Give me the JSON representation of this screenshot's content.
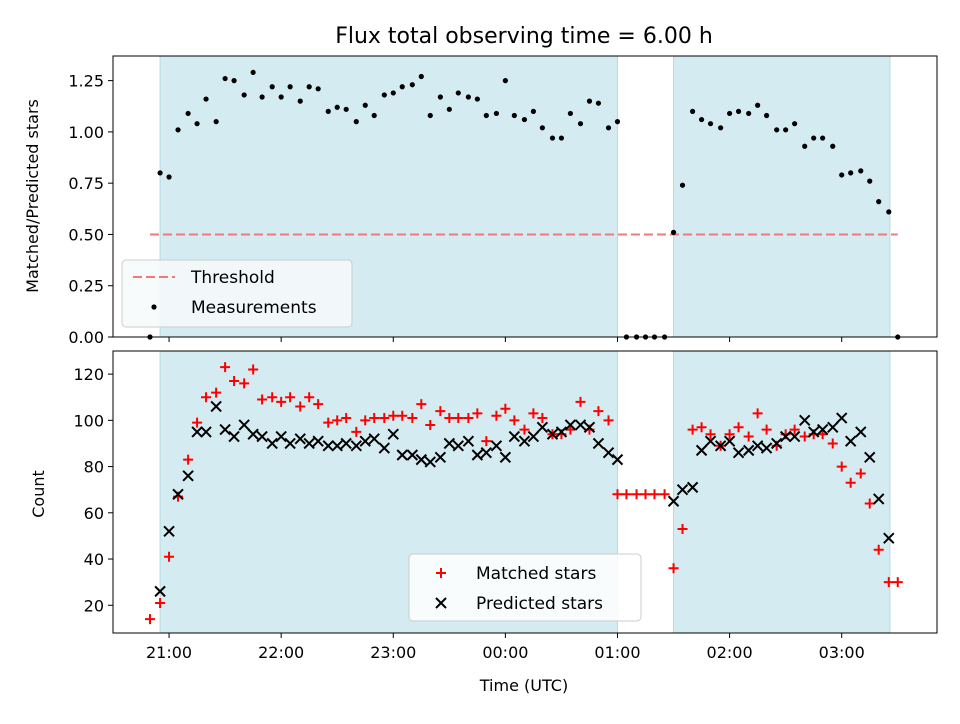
{
  "figure_title": "Flux total observing time = 6.00 h",
  "xlabel": "Time (UTC)",
  "x_ticks": [
    "21:00",
    "22:00",
    "23:00",
    "00:00",
    "01:00",
    "02:00",
    "03:00"
  ],
  "chart_data": [
    {
      "type": "scatter",
      "title": "Flux total observing time = 6.00 h",
      "ylabel": "Matched/Predicted stars",
      "x_unit": "hours after 21:00 UTC",
      "xlim": [
        -0.5,
        6.85
      ],
      "ylim": [
        0,
        1.37
      ],
      "y_ticks": [
        "0.00",
        "0.25",
        "0.50",
        "0.75",
        "1.00",
        "1.25"
      ],
      "shaded_intervals": [
        [
          -0.08,
          4.0
        ],
        [
          4.5,
          6.43
        ]
      ],
      "shade_color": "#d3ebf1",
      "legend_position": "lower-left",
      "threshold": {
        "name": "Threshold",
        "value": 0.5,
        "x_range": [
          -0.17,
          6.5
        ],
        "color": "#f07a7a"
      },
      "series": [
        {
          "name": "Measurements",
          "color": "#000000",
          "x": [
            -0.17,
            -0.08,
            0,
            0.08,
            0.17,
            0.25,
            0.33,
            0.42,
            0.5,
            0.58,
            0.67,
            0.75,
            0.83,
            0.92,
            1.0,
            1.08,
            1.17,
            1.25,
            1.33,
            1.42,
            1.5,
            1.58,
            1.67,
            1.75,
            1.83,
            1.92,
            2.0,
            2.08,
            2.17,
            2.25,
            2.33,
            2.42,
            2.5,
            2.58,
            2.67,
            2.75,
            2.83,
            2.92,
            3.0,
            3.08,
            3.17,
            3.25,
            3.33,
            3.42,
            3.5,
            3.58,
            3.67,
            3.75,
            3.83,
            3.92,
            4.0,
            4.08,
            4.17,
            4.25,
            4.33,
            4.42,
            4.5,
            4.58,
            4.67,
            4.75,
            4.83,
            4.92,
            5.0,
            5.08,
            5.17,
            5.25,
            5.33,
            5.42,
            5.5,
            5.58,
            5.67,
            5.75,
            5.83,
            5.92,
            6.0,
            6.08,
            6.17,
            6.25,
            6.33,
            6.42,
            6.5
          ],
          "y": [
            0,
            0.8,
            0.78,
            1.01,
            1.09,
            1.04,
            1.16,
            1.05,
            1.26,
            1.25,
            1.18,
            1.29,
            1.17,
            1.22,
            1.17,
            1.22,
            1.15,
            1.22,
            1.21,
            1.1,
            1.12,
            1.11,
            1.05,
            1.13,
            1.08,
            1.18,
            1.19,
            1.22,
            1.23,
            1.27,
            1.08,
            1.17,
            1.11,
            1.19,
            1.17,
            1.16,
            1.08,
            1.09,
            1.25,
            1.08,
            1.06,
            1.1,
            1.02,
            0.97,
            0.97,
            1.09,
            1.04,
            1.15,
            1.14,
            1.02,
            1.05,
            0,
            0,
            0,
            0,
            0,
            0.51,
            0.74,
            1.1,
            1.06,
            1.04,
            1.02,
            1.09,
            1.1,
            1.09,
            1.13,
            1.08,
            1.01,
            1.01,
            1.04,
            0.93,
            0.97,
            0.97,
            0.93,
            0.79,
            0.8,
            0.81,
            0.76,
            0.66,
            0.61,
            0
          ]
        }
      ]
    },
    {
      "type": "scatter",
      "ylabel": "Count",
      "x_unit": "hours after 21:00 UTC",
      "xlim": [
        -0.5,
        6.85
      ],
      "ylim": [
        8,
        130
      ],
      "y_ticks": [
        "20",
        "40",
        "60",
        "80",
        "100",
        "120"
      ],
      "shaded_intervals": [
        [
          -0.08,
          4.0
        ],
        [
          4.5,
          6.43
        ]
      ],
      "shade_color": "#d3ebf1",
      "legend_position": "lower-center",
      "series": [
        {
          "name": "Matched stars",
          "marker": "plus",
          "color": "#ff0000",
          "x": [
            -0.17,
            -0.08,
            0,
            0.08,
            0.17,
            0.25,
            0.33,
            0.42,
            0.5,
            0.58,
            0.67,
            0.75,
            0.83,
            0.92,
            1.0,
            1.08,
            1.17,
            1.25,
            1.33,
            1.42,
            1.5,
            1.58,
            1.67,
            1.75,
            1.83,
            1.92,
            2.0,
            2.08,
            2.17,
            2.25,
            2.33,
            2.42,
            2.5,
            2.58,
            2.67,
            2.75,
            2.83,
            2.92,
            3.0,
            3.08,
            3.17,
            3.25,
            3.33,
            3.42,
            3.5,
            3.58,
            3.67,
            3.75,
            3.83,
            3.92,
            4.0,
            4.08,
            4.17,
            4.25,
            4.33,
            4.42,
            4.5,
            4.58,
            4.67,
            4.75,
            4.83,
            4.92,
            5.0,
            5.08,
            5.17,
            5.25,
            5.33,
            5.42,
            5.5,
            5.58,
            5.67,
            5.75,
            5.83,
            5.92,
            6.0,
            6.08,
            6.17,
            6.25,
            6.33,
            6.42,
            6.5
          ],
          "y": [
            14,
            21,
            41,
            67,
            83,
            99,
            110,
            112,
            123,
            117,
            116,
            122,
            109,
            110,
            108,
            110,
            106,
            110,
            107,
            99,
            100,
            101,
            95,
            100,
            101,
            101,
            102,
            102,
            101,
            107,
            98,
            104,
            101,
            101,
            101,
            103,
            91,
            102,
            105,
            100,
            96,
            103,
            101,
            94,
            94,
            96,
            108,
            96,
            104,
            100,
            68,
            68,
            68,
            68,
            68,
            68,
            36,
            53,
            96,
            97,
            94,
            89,
            94,
            97,
            93,
            103,
            96,
            89,
            94,
            96,
            93,
            94,
            94,
            90,
            80,
            73,
            77,
            64,
            44,
            30,
            30
          ]
        },
        {
          "name": "Predicted stars",
          "marker": "x",
          "color": "#000000",
          "x": [
            -0.08,
            0,
            0.08,
            0.17,
            0.25,
            0.33,
            0.42,
            0.5,
            0.58,
            0.67,
            0.75,
            0.83,
            0.92,
            1.0,
            1.08,
            1.17,
            1.25,
            1.33,
            1.42,
            1.5,
            1.58,
            1.67,
            1.75,
            1.83,
            1.92,
            2.0,
            2.08,
            2.17,
            2.25,
            2.33,
            2.42,
            2.5,
            2.58,
            2.67,
            2.75,
            2.83,
            2.92,
            3.0,
            3.08,
            3.17,
            3.25,
            3.33,
            3.42,
            3.5,
            3.58,
            3.67,
            3.75,
            3.83,
            3.92,
            4.0,
            4.5,
            4.58,
            4.67,
            4.75,
            4.83,
            4.92,
            5.0,
            5.08,
            5.17,
            5.25,
            5.33,
            5.42,
            5.5,
            5.58,
            5.67,
            5.75,
            5.83,
            5.92,
            6.0,
            6.08,
            6.17,
            6.25,
            6.33,
            6.42
          ],
          "y": [
            26,
            52,
            68,
            76,
            95,
            95,
            106,
            96,
            93,
            98,
            94,
            93,
            90,
            93,
            90,
            92,
            90,
            91,
            89,
            89,
            90,
            89,
            91,
            92,
            88,
            94,
            85,
            85,
            83,
            82,
            84,
            90,
            89,
            91,
            85,
            86,
            89,
            84,
            93,
            91,
            93,
            97,
            94,
            95,
            98,
            98,
            97,
            90,
            86,
            83,
            65,
            70,
            71,
            87,
            91,
            89,
            91,
            86,
            87,
            89,
            88,
            90,
            93,
            93,
            100,
            95,
            96,
            97,
            101,
            91,
            95,
            84,
            66,
            49
          ]
        }
      ]
    }
  ]
}
